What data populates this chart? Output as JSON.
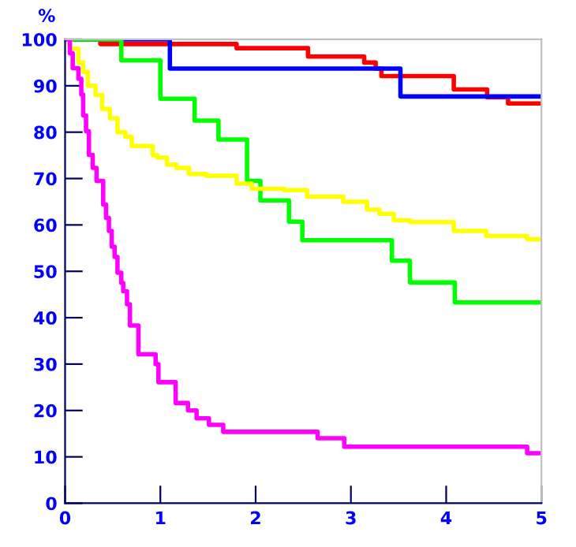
{
  "chart_data": {
    "type": "step",
    "ylabel": "%",
    "xlim": [
      0,
      5
    ],
    "ylim": [
      0,
      100
    ],
    "xticks": [
      0,
      1,
      2,
      3,
      4,
      5
    ],
    "yticks": [
      0,
      10,
      20,
      30,
      40,
      50,
      60,
      70,
      80,
      90,
      100
    ],
    "marker": "none",
    "line_style": "solid",
    "series": [
      {
        "color": "#ff0000",
        "x": [
          0,
          0.37,
          1.8,
          2.55,
          3.14,
          3.26,
          3.32,
          4.08,
          4.43,
          4.65,
          5
        ],
        "values": [
          100,
          99,
          98.1,
          96.3,
          95,
          93.7,
          92.1,
          89.2,
          87.5,
          86.2,
          86.2
        ]
      },
      {
        "color": "#0000ff",
        "x": [
          0,
          1.1,
          3.52,
          5
        ],
        "values": [
          100,
          93.7,
          87.7,
          87.7
        ]
      },
      {
        "color": "#00ff00",
        "x": [
          0,
          0.59,
          1.0,
          1.36,
          1.61,
          1.91,
          2.05,
          2.35,
          2.49,
          3.43,
          3.62,
          4.09,
          5
        ],
        "values": [
          100,
          95.5,
          87.2,
          82.5,
          78.4,
          69.5,
          65.3,
          60.7,
          56.7,
          52.3,
          47.6,
          43.3,
          43.3
        ]
      },
      {
        "color": "#ffff00",
        "x": [
          0,
          0.05,
          0.14,
          0.19,
          0.24,
          0.32,
          0.39,
          0.47,
          0.55,
          0.63,
          0.7,
          0.92,
          0.97,
          1.07,
          1.17,
          1.3,
          1.48,
          1.8,
          1.96,
          2.3,
          2.54,
          2.92,
          3.17,
          3.3,
          3.45,
          3.62,
          4.08,
          4.42,
          4.85,
          5
        ],
        "values": [
          100,
          98,
          95,
          93,
          90,
          88,
          85,
          83,
          80,
          79,
          77,
          75,
          74.5,
          73,
          72.3,
          71,
          70.6,
          68.9,
          67.8,
          67.5,
          66.1,
          65,
          63.3,
          62.4,
          61,
          60.6,
          58.7,
          57.6,
          56.9,
          56.9
        ]
      },
      {
        "color": "#ff00ff",
        "x": [
          0,
          0.05,
          0.08,
          0.14,
          0.17,
          0.19,
          0.22,
          0.25,
          0.29,
          0.33,
          0.4,
          0.43,
          0.46,
          0.49,
          0.52,
          0.55,
          0.59,
          0.61,
          0.65,
          0.68,
          0.77,
          0.95,
          0.98,
          1.16,
          1.29,
          1.38,
          1.51,
          1.66,
          2.65,
          2.93,
          4.85,
          5
        ],
        "values": [
          100,
          97,
          93.8,
          91.5,
          88.1,
          83.6,
          80.2,
          75.1,
          72.3,
          69.5,
          64.4,
          61.5,
          58.7,
          55.3,
          53.1,
          49.7,
          47.5,
          45.7,
          42.9,
          38.3,
          32.1,
          30,
          26.1,
          21.6,
          20,
          18.3,
          16.9,
          15.4,
          14,
          12.2,
          10.8,
          10.8
        ]
      }
    ]
  }
}
